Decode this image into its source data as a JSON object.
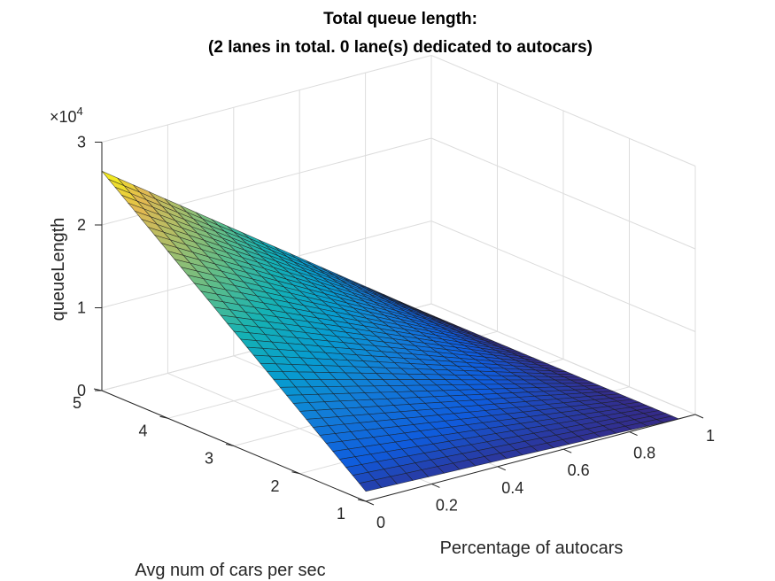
{
  "chart_data": {
    "type": "surface",
    "title_lines": [
      "Total queue length:",
      "(2 lanes in total. 0 lane(s) dedicated to autocars)"
    ],
    "xlabel": "Percentage of autocars",
    "ylabel": "Avg num of cars per sec",
    "zlabel": "queueLength",
    "z_exponent_label": "×10",
    "z_exponent_power": "4",
    "xlim": [
      0,
      1
    ],
    "ylim": [
      1,
      5
    ],
    "zlim": [
      0,
      30000
    ],
    "x_ticks": [
      "0",
      "0.2",
      "0.4",
      "0.6",
      "0.8",
      "1"
    ],
    "y_ticks": [
      "1",
      "2",
      "3",
      "4",
      "5"
    ],
    "z_ticks": [
      "0",
      "1",
      "2",
      "3"
    ],
    "colormap": "parula",
    "grid": true,
    "surface": {
      "x_range": [
        0,
        0.95
      ],
      "y_range": [
        1,
        5
      ],
      "x_steps": 20,
      "y_steps": 40,
      "z_corners": {
        "x0_y1": 1200,
        "x0_y5": 26500,
        "xmax_y1": 0,
        "xmax_y5": 0
      }
    }
  }
}
